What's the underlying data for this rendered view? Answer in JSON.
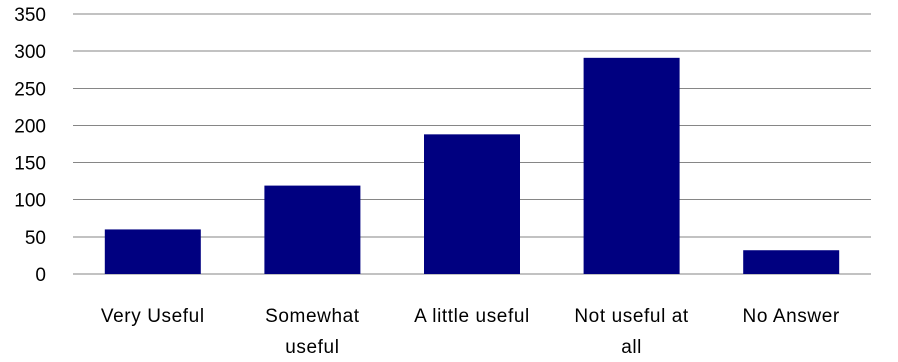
{
  "chart_data": {
    "type": "bar",
    "title": "",
    "xlabel": "",
    "ylabel": "",
    "categories": [
      "Very Useful",
      "Somewhat useful",
      "A little useful",
      "Not useful at all",
      "No Answer"
    ],
    "category_lines": [
      [
        "Very Useful"
      ],
      [
        "Somewhat",
        "useful"
      ],
      [
        "A little useful"
      ],
      [
        "Not useful at",
        "all"
      ],
      [
        "No Answer"
      ]
    ],
    "values": [
      60,
      119,
      188,
      291,
      32
    ],
    "ylim": [
      0,
      350
    ],
    "yticks": [
      0,
      50,
      100,
      150,
      200,
      250,
      300,
      350
    ],
    "grid": true,
    "legend": "none",
    "bar_color": "#000080",
    "grid_color": "#868686"
  }
}
